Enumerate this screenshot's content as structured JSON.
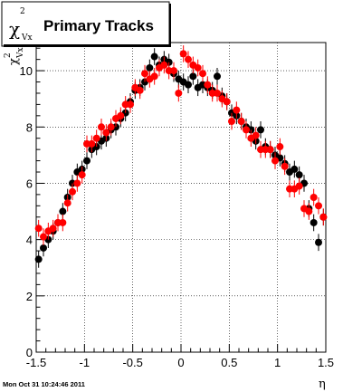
{
  "chart_data": {
    "type": "scatter",
    "title": "Primary Tracks",
    "title_symbol": "χ",
    "title_symbol_sup": "2",
    "title_symbol_sub": "Vx",
    "xlabel": "η",
    "ylabel": "χ",
    "ylabel_sup": "2",
    "ylabel_sub": "Vx",
    "xlim": [
      -1.5,
      1.5
    ],
    "ylim": [
      0,
      11.0
    ],
    "x_ticks": [
      -1.5,
      -1,
      -0.5,
      0,
      0.5,
      1,
      1.5
    ],
    "x_tick_labels": [
      "-1.5",
      "-1",
      "-0.5",
      "0",
      "0.5",
      "1",
      "1.5"
    ],
    "y_ticks": [
      0,
      2,
      4,
      6,
      8,
      10
    ],
    "y_tick_labels": [
      "0",
      "2",
      "4",
      "6",
      "8",
      "10"
    ],
    "grid": true,
    "timestamp": "Mon Oct 31 10:24:46 2011",
    "series": [
      {
        "color": "#000000",
        "x": [
          -1.475,
          -1.425,
          -1.375,
          -1.325,
          -1.275,
          -1.225,
          -1.175,
          -1.125,
          -1.075,
          -1.025,
          -0.975,
          -0.925,
          -0.875,
          -0.825,
          -0.775,
          -0.725,
          -0.675,
          -0.625,
          -0.575,
          -0.525,
          -0.475,
          -0.425,
          -0.375,
          -0.325,
          -0.275,
          -0.225,
          -0.175,
          -0.125,
          -0.075,
          -0.025,
          0.025,
          0.075,
          0.125,
          0.175,
          0.225,
          0.275,
          0.325,
          0.375,
          0.425,
          0.475,
          0.525,
          0.575,
          0.625,
          0.675,
          0.725,
          0.775,
          0.825,
          0.875,
          0.925,
          0.975,
          1.025,
          1.075,
          1.125,
          1.175,
          1.225,
          1.275,
          1.325,
          1.375,
          1.425,
          1.475
        ],
        "y": [
          3.3,
          3.7,
          4.0,
          4.3,
          4.6,
          5.0,
          5.5,
          6.0,
          6.4,
          6.5,
          6.8,
          7.2,
          7.3,
          7.5,
          7.6,
          7.9,
          8.0,
          8.3,
          8.5,
          8.9,
          9.3,
          9.4,
          9.6,
          10.1,
          10.5,
          10.2,
          10.4,
          10.3,
          9.9,
          9.7,
          9.6,
          9.5,
          9.8,
          9.4,
          9.5,
          9.4,
          9.3,
          9.8,
          9.1,
          8.9,
          8.5,
          8.4,
          8.2,
          8.0,
          7.9,
          7.5,
          7.9,
          7.3,
          7.2,
          7.0,
          6.9,
          6.7,
          6.4,
          6.5,
          6.3,
          6.0,
          5.1,
          4.6,
          3.9,
          4.8
        ],
        "err": [
          0.3,
          0.3,
          0.3,
          0.3,
          0.3,
          0.3,
          0.3,
          0.3,
          0.3,
          0.3,
          0.3,
          0.3,
          0.3,
          0.3,
          0.3,
          0.3,
          0.3,
          0.3,
          0.3,
          0.3,
          0.3,
          0.3,
          0.3,
          0.3,
          0.3,
          0.3,
          0.3,
          0.3,
          0.3,
          0.3,
          0.3,
          0.3,
          0.3,
          0.3,
          0.3,
          0.3,
          0.3,
          0.3,
          0.3,
          0.3,
          0.3,
          0.3,
          0.3,
          0.3,
          0.3,
          0.3,
          0.3,
          0.3,
          0.3,
          0.3,
          0.3,
          0.3,
          0.3,
          0.3,
          0.3,
          0.3,
          0.3,
          0.3,
          0.3,
          0.3
        ]
      },
      {
        "color": "#ff0000",
        "x": [
          -1.475,
          -1.425,
          -1.375,
          -1.325,
          -1.275,
          -1.225,
          -1.175,
          -1.125,
          -1.075,
          -1.025,
          -0.975,
          -0.925,
          -0.875,
          -0.825,
          -0.775,
          -0.725,
          -0.675,
          -0.625,
          -0.575,
          -0.525,
          -0.475,
          -0.425,
          -0.375,
          -0.325,
          -0.275,
          -0.225,
          -0.175,
          -0.125,
          -0.075,
          -0.025,
          0.025,
          0.075,
          0.125,
          0.175,
          0.225,
          0.275,
          0.325,
          0.375,
          0.425,
          0.475,
          0.525,
          0.575,
          0.625,
          0.675,
          0.725,
          0.775,
          0.825,
          0.875,
          0.925,
          0.975,
          1.025,
          1.075,
          1.125,
          1.175,
          1.225,
          1.275,
          1.325,
          1.375,
          1.425,
          1.475
        ],
        "y": [
          4.4,
          4.1,
          4.3,
          4.4,
          4.6,
          4.6,
          5.3,
          5.7,
          6.0,
          6.3,
          7.4,
          7.4,
          7.6,
          8.0,
          7.8,
          8.0,
          8.3,
          8.4,
          8.8,
          8.8,
          9.4,
          9.3,
          9.9,
          9.7,
          9.8,
          10.1,
          10.2,
          10.0,
          10.0,
          9.2,
          10.6,
          10.4,
          10.2,
          10.1,
          9.9,
          9.5,
          9.2,
          9.2,
          9.0,
          8.9,
          8.2,
          8.6,
          8.2,
          7.9,
          7.6,
          7.7,
          7.2,
          7.2,
          7.2,
          6.8,
          7.3,
          6.6,
          5.8,
          5.8,
          5.9,
          5.1,
          5.0,
          5.5,
          5.2,
          4.8
        ],
        "err": [
          0.3,
          0.3,
          0.3,
          0.3,
          0.3,
          0.3,
          0.3,
          0.3,
          0.3,
          0.3,
          0.3,
          0.3,
          0.3,
          0.3,
          0.3,
          0.3,
          0.3,
          0.3,
          0.3,
          0.3,
          0.3,
          0.3,
          0.3,
          0.3,
          0.3,
          0.3,
          0.3,
          0.3,
          0.3,
          0.3,
          0.3,
          0.3,
          0.3,
          0.3,
          0.3,
          0.3,
          0.3,
          0.3,
          0.3,
          0.3,
          0.3,
          0.3,
          0.3,
          0.3,
          0.3,
          0.3,
          0.3,
          0.3,
          0.3,
          0.3,
          0.3,
          0.3,
          0.3,
          0.3,
          0.3,
          0.3,
          0.3,
          0.3,
          0.3,
          0.3
        ]
      }
    ]
  }
}
